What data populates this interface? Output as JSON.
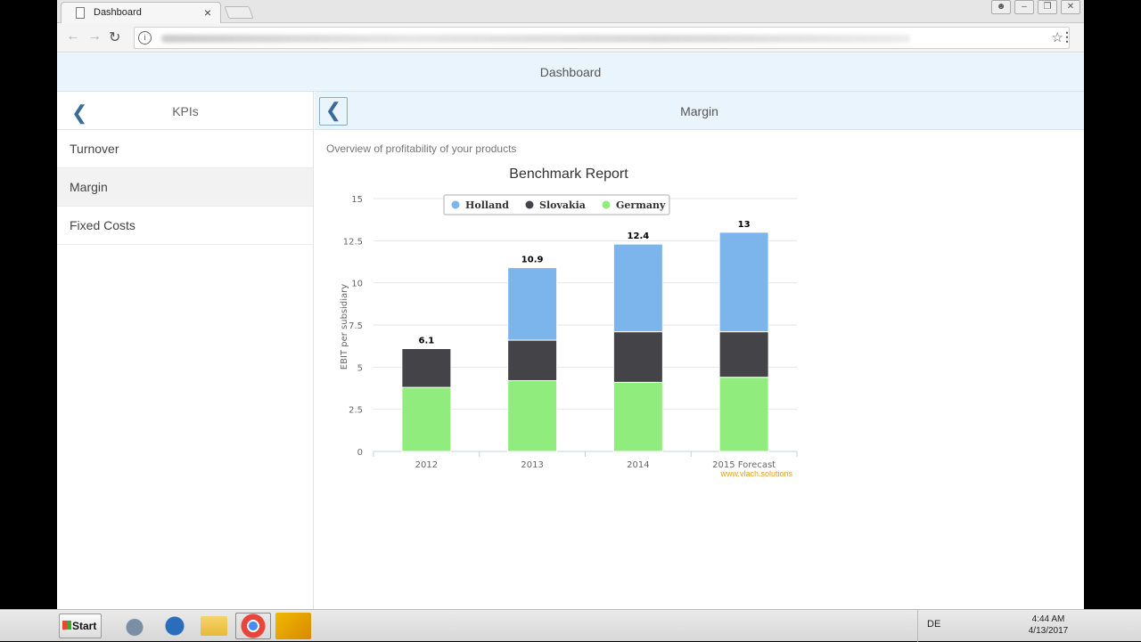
{
  "browser": {
    "tab_title": "Dashboard",
    "tab_close": "×"
  },
  "app": {
    "header_title": "Dashboard"
  },
  "master": {
    "back_icon": "chevron-left-icon",
    "title": "KPIs",
    "items": [
      {
        "label": "Turnover",
        "selected": false
      },
      {
        "label": "Margin",
        "selected": true
      },
      {
        "label": "Fixed Costs",
        "selected": false
      }
    ]
  },
  "detail": {
    "title": "Margin",
    "description": "Overview of profitability of your products"
  },
  "chart_data": {
    "type": "bar",
    "stacked": true,
    "title": "Benchmark Report",
    "ylabel": "EBIT per subsidiary",
    "xlabel": "",
    "ylim": [
      0,
      15
    ],
    "yticks": [
      0,
      2.5,
      5,
      7.5,
      10,
      12.5,
      15
    ],
    "ytick_labels": [
      "0",
      "2.5",
      "5",
      "7.5",
      "10",
      "12.5",
      "15"
    ],
    "categories": [
      "2012",
      "2013",
      "2014",
      "2015 Forecast"
    ],
    "series": [
      {
        "name": "Holland",
        "color": "#7cb5ec",
        "values": [
          0,
          4.3,
          5.2,
          5.9
        ]
      },
      {
        "name": "Slovakia",
        "color": "#434348",
        "values": [
          2.3,
          2.4,
          3.0,
          2.7
        ]
      },
      {
        "name": "Germany",
        "color": "#90ed7d",
        "values": [
          3.8,
          4.2,
          4.1,
          4.4
        ]
      }
    ],
    "totals": [
      "6.1",
      "10.9",
      "12.4",
      "13"
    ],
    "legend_position": "top",
    "grid": true,
    "credits": "www.vlach.solutions"
  },
  "taskbar": {
    "start_label": "Start",
    "apps": [
      "server-manager-icon",
      "powershell-icon",
      "file-explorer-icon",
      "chrome-icon",
      "app-icon"
    ],
    "language": "DE",
    "time": "4:44 AM",
    "date": "4/13/2017"
  }
}
